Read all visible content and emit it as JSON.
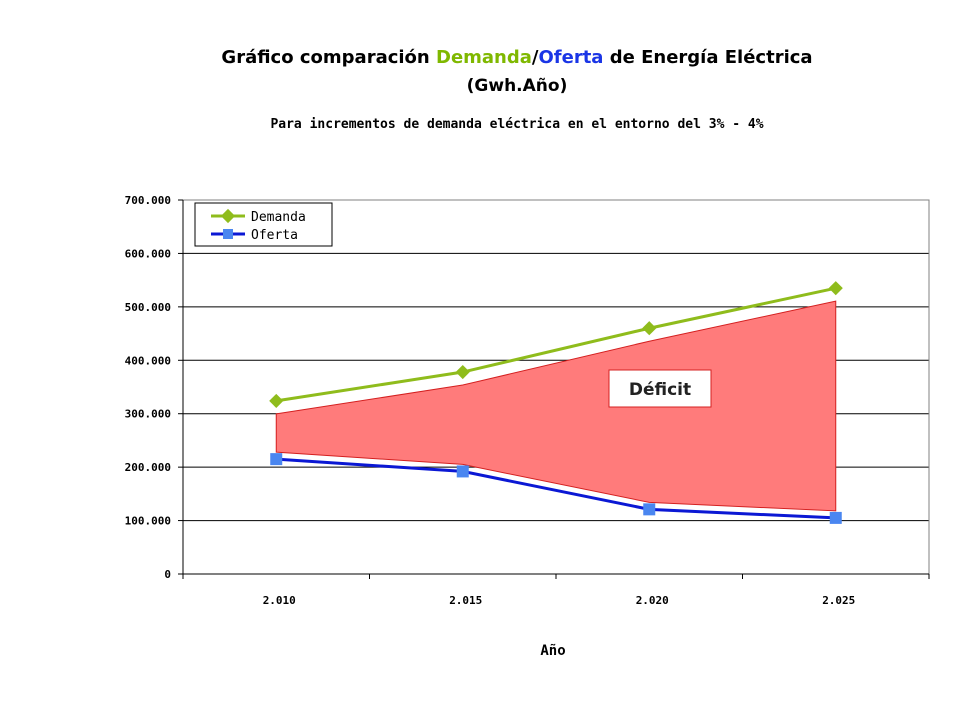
{
  "header": {
    "title_prefix": "Gráfico comparación ",
    "title_demand": "Demanda",
    "title_slash": "/",
    "title_supply": "Oferta",
    "title_suffix": " de Energía Eléctrica",
    "title_line2": "(Gwh.Año)",
    "subtitle": "Para incrementos de demanda eléctrica en el entorno del 3% - 4%"
  },
  "colors": {
    "demand": "#8fbc1c",
    "supply": "#0b18d4",
    "supply_marker": "#4a86f0",
    "deficit_fill": "#ff7b7b",
    "deficit_border": "#d42020",
    "title_demand": "#7fb800",
    "title_supply": "#1a35e6"
  },
  "chart_data": {
    "type": "line",
    "categories": [
      "2.010",
      "2.015",
      "2.020",
      "2.025"
    ],
    "series": [
      {
        "name": "Demanda",
        "values": [
          324000,
          378000,
          460000,
          535000
        ]
      },
      {
        "name": "Oferta",
        "values": [
          215000,
          192000,
          121000,
          105000
        ]
      }
    ],
    "ylim": [
      0,
      700000
    ],
    "yticks": [
      0,
      100000,
      200000,
      300000,
      400000,
      500000,
      600000,
      700000
    ],
    "ytick_labels": [
      "0",
      "100.000",
      "200.000",
      "300.000",
      "400.000",
      "500.000",
      "600.000",
      "700.000"
    ],
    "xlabel": "Año",
    "ylabel": "",
    "grid": true,
    "legend_position": "top-left",
    "annotation": "Déficit"
  }
}
